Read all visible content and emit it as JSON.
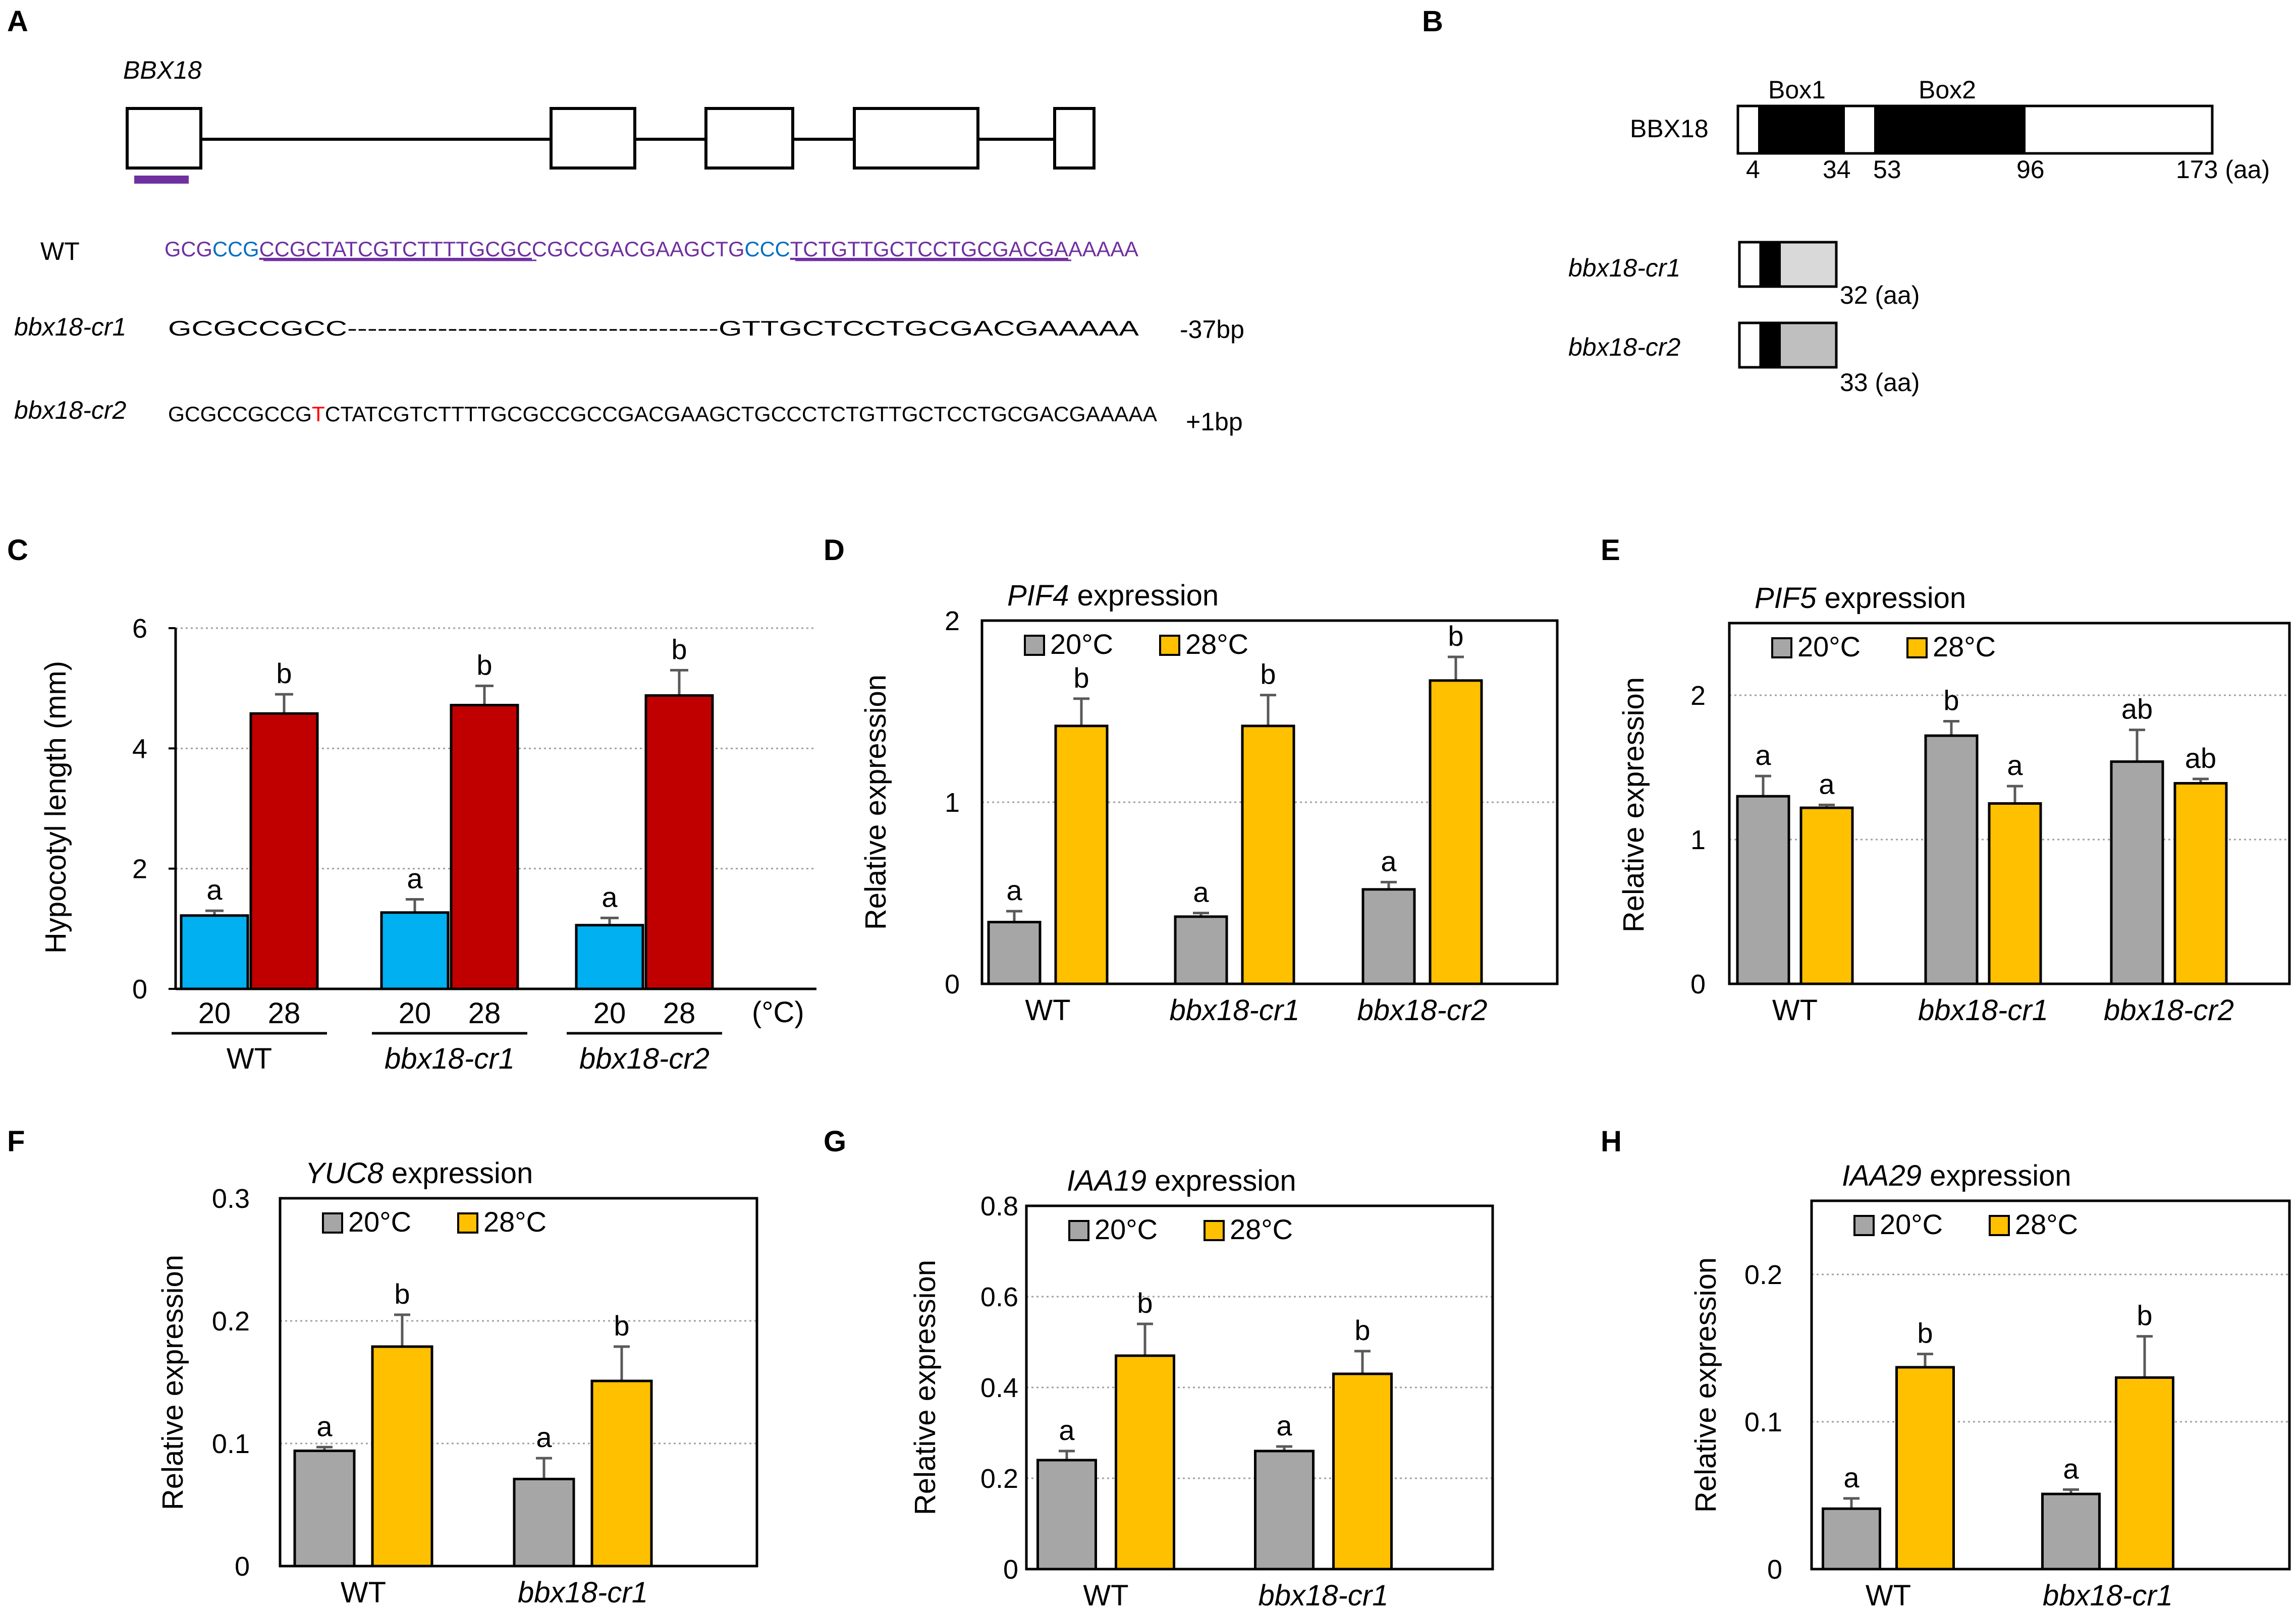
{
  "panels": {
    "A": "A",
    "B": "B",
    "C": "C",
    "D": "D",
    "E": "E",
    "F": "F",
    "G": "G",
    "H": "H"
  },
  "panelA": {
    "gene": "BBX18",
    "wt_label": "WT",
    "wt_seq": {
      "p1": "GCG",
      "p2": "CCG",
      "p3": "CCGCTATCGTCTTTTGCGC",
      "p4": "CGCCGACGAAGCTG",
      "p5": "CCC",
      "p6": "TCTGTTGCTCCTGCGACGA",
      "p7": "AAAAA"
    },
    "cr1_label": "bbx18-cr1",
    "cr1_seq": "GCGCCGCC-------------------------------------GTTGCTCCTGCGACGAAAAA",
    "cr1_change": "-37bp",
    "cr2_label": "bbx18-cr2",
    "cr2_seq": {
      "p1": "GCGCCGCCG",
      "ins": "T",
      "p2": "CTATCGTCTTTTGCGCCGCCGACGAAGCTGCCCTCTGTTGCTCCTGCGACGAAAAA"
    },
    "cr2_change": "+1bp"
  },
  "panelB": {
    "protein": "BBX18",
    "box1": "Box1",
    "box2": "Box2",
    "pos": [
      "4",
      "34",
      "53",
      "96",
      "173 (aa)"
    ],
    "cr1_label": "bbx18-cr1",
    "cr1_len": "32 (aa)",
    "cr2_label": "bbx18-cr2",
    "cr2_len": "33 (aa)"
  },
  "colors": {
    "c20": "#00b0f0",
    "c28": "#c00000",
    "grey": "#a6a6a6",
    "yellow": "#ffc000",
    "purple": "#7030a0",
    "blue": "#0070c0",
    "red": "#ff0000"
  },
  "legend": {
    "t20": "20°C",
    "t28": "28°C"
  },
  "chart_data": [
    {
      "panel": "C",
      "type": "bar",
      "ylabel": "Hypocotyl length (mm)",
      "ylim": [
        0,
        6
      ],
      "yticks": [
        0,
        2,
        4,
        6
      ],
      "genotypes": [
        "WT",
        "bbx18-cr1",
        "bbx18-cr2"
      ],
      "temperatures": [
        "20",
        "28"
      ],
      "unit": "(°C)",
      "values": [
        [
          1.22,
          4.58
        ],
        [
          1.27,
          4.72
        ],
        [
          1.06,
          4.88
        ]
      ],
      "errors": [
        [
          0.08,
          0.32
        ],
        [
          0.22,
          0.32
        ],
        [
          0.12,
          0.42
        ]
      ],
      "letters": [
        [
          "a",
          "b"
        ],
        [
          "a",
          "b"
        ],
        [
          "a",
          "b"
        ]
      ]
    },
    {
      "panel": "D",
      "type": "bar",
      "title_gene": "PIF4",
      "title_rest": " expression",
      "ylabel": "Relative expression",
      "ylim": [
        0,
        2
      ],
      "yticks": [
        0,
        1,
        2
      ],
      "categories": [
        "WT",
        "bbx18-cr1",
        "bbx18-cr2"
      ],
      "series": [
        {
          "name": "20°C",
          "values": [
            0.34,
            0.37,
            0.52
          ],
          "errors": [
            0.06,
            0.02,
            0.04
          ]
        },
        {
          "name": "28°C",
          "values": [
            1.42,
            1.42,
            1.67
          ],
          "errors": [
            0.15,
            0.17,
            0.13
          ]
        }
      ],
      "letters": [
        [
          "a",
          "b"
        ],
        [
          "a",
          "b"
        ],
        [
          "a",
          "b"
        ]
      ]
    },
    {
      "panel": "E",
      "type": "bar",
      "title_gene": "PIF5",
      "title_rest": " expression",
      "ylabel": "Relative expression",
      "ylim": [
        0,
        2.5
      ],
      "yticks": [
        0,
        1,
        2
      ],
      "categories": [
        "WT",
        "bbx18-cr1",
        "bbx18-cr2"
      ],
      "series": [
        {
          "name": "20°C",
          "values": [
            1.3,
            1.72,
            1.54
          ],
          "errors": [
            0.14,
            0.1,
            0.22
          ]
        },
        {
          "name": "28°C",
          "values": [
            1.22,
            1.25,
            1.39
          ],
          "errors": [
            0.02,
            0.12,
            0.03
          ]
        }
      ],
      "letters": [
        [
          "a",
          "a"
        ],
        [
          "b",
          "a"
        ],
        [
          "ab",
          "ab"
        ]
      ]
    },
    {
      "panel": "F",
      "type": "bar",
      "title_gene": "YUC8",
      "title_rest": " expression",
      "ylabel": "Relative expression",
      "ylim": [
        0,
        0.3
      ],
      "yticks": [
        0,
        0.1,
        0.2,
        0.3
      ],
      "categories": [
        "WT",
        "bbx18-cr1"
      ],
      "series": [
        {
          "name": "20°C",
          "values": [
            0.094,
            0.071
          ],
          "errors": [
            0.003,
            0.017
          ]
        },
        {
          "name": "28°C",
          "values": [
            0.179,
            0.151
          ],
          "errors": [
            0.026,
            0.028
          ]
        }
      ],
      "letters": [
        [
          "a",
          "b"
        ],
        [
          "a",
          "b"
        ]
      ]
    },
    {
      "panel": "G",
      "type": "bar",
      "title_gene": "IAA19",
      "title_rest": " expression",
      "ylabel": "Relative expression",
      "ylim": [
        0,
        0.8
      ],
      "yticks": [
        0,
        0.2,
        0.4,
        0.6,
        0.8
      ],
      "categories": [
        "WT",
        "bbx18-cr1"
      ],
      "series": [
        {
          "name": "20°C",
          "values": [
            0.24,
            0.26
          ],
          "errors": [
            0.02,
            0.01
          ]
        },
        {
          "name": "28°C",
          "values": [
            0.47,
            0.43
          ],
          "errors": [
            0.07,
            0.05
          ]
        }
      ],
      "letters": [
        [
          "a",
          "b"
        ],
        [
          "a",
          "b"
        ]
      ]
    },
    {
      "panel": "H",
      "type": "bar",
      "title_gene": "IAA29",
      "title_rest": " expression",
      "ylabel": "Relative expression",
      "ylim": [
        0,
        0.25
      ],
      "yticks": [
        0,
        0.1,
        0.2
      ],
      "categories": [
        "WT",
        "bbx18-cr1"
      ],
      "series": [
        {
          "name": "20°C",
          "values": [
            0.041,
            0.051
          ],
          "errors": [
            0.007,
            0.003
          ]
        },
        {
          "name": "28°C",
          "values": [
            0.137,
            0.13
          ],
          "errors": [
            0.009,
            0.028
          ]
        }
      ],
      "letters": [
        [
          "a",
          "b"
        ],
        [
          "a",
          "b"
        ]
      ]
    }
  ]
}
